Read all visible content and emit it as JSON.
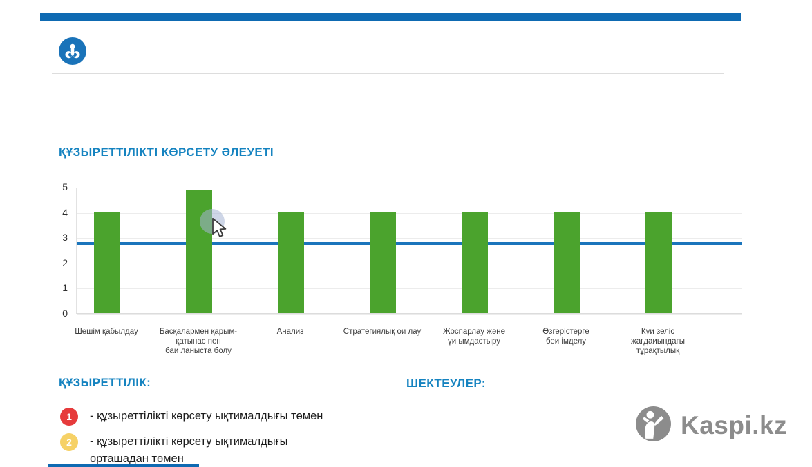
{
  "theme": {
    "top_bar_blue": "#0E6AB2",
    "heading_blue": "#1583C0",
    "bar_green": "#4BA32D",
    "threshold_blue": "#1B75BC",
    "watermark_gray": "#8C8C8C",
    "legend_red": "#E63B3C",
    "legend_yellow": "#F6D166"
  },
  "chart_data": {
    "type": "bar",
    "title": "ҚҰЗЫРЕТТІЛІКТІ КӨРСЕТУ ӘЛЕУЕТІ",
    "categories": [
      "Шешім қабылдау",
      "Басқалармен қарым-\nқатынас пен\nбаи ланыста болу",
      "Анализ",
      "Стратегиялық ои лау",
      "Жоспарлау және\nұи ымдастыру",
      "Өзгерістерге\nбеи імделу",
      "Күи зеліс\nжағдаиындағы\nтұрақтылық"
    ],
    "values": [
      4,
      4.9,
      4,
      4,
      4,
      4,
      4
    ],
    "threshold_line": 2.8,
    "ylim": [
      0,
      5
    ],
    "yticks": [
      0,
      1,
      2,
      3,
      4,
      5
    ],
    "xlabel": "",
    "ylabel": "",
    "grid": true,
    "legend_position": "none",
    "bar_color": "#4BA32D",
    "threshold_color": "#1B75BC"
  },
  "legend": {
    "competency_heading": "ҚҰЗЫРЕТТІЛІК:",
    "items": [
      {
        "badge": "1",
        "text": "- құзыреттілікті көрсету ықтималдығы төмен"
      },
      {
        "badge": "2",
        "text": "- құзыреттілікті көрсету ықтималдығы\nорташадан төмен"
      }
    ],
    "limitations_heading": "ШЕКТЕУЛЕР:"
  },
  "watermark": {
    "label": "Kaspi.kz"
  }
}
